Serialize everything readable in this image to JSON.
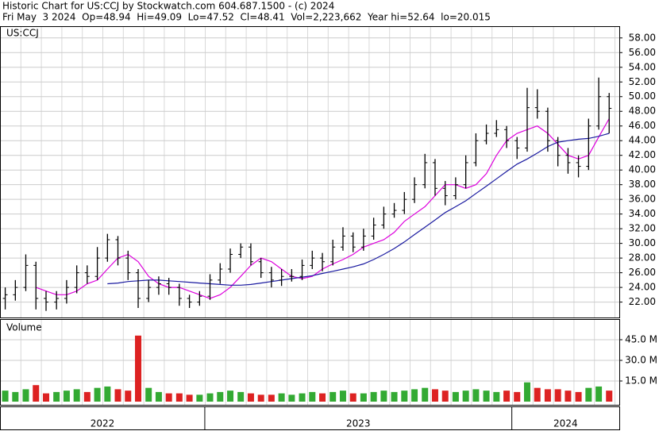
{
  "chart_data": {
    "type": "ohlc",
    "title": "Historic Chart for US:CCJ by Stockwatch.com 604.687.1500 - (c) 2024",
    "subtitle": "Fri May  3 2024  Op=48.94  Hi=49.09  Lo=47.52  Cl=48.41  Vol=2,223,662  Year hi=52.64  lo=20.015",
    "symbol_label": "US:CCJ",
    "volume_label": "Volume",
    "up_color": "#33aa33",
    "down_color": "#dd2222",
    "bar_color": "#000000",
    "xlim": [
      2022.333,
      2024.35
    ],
    "year_boundaries": [
      2023,
      2024
    ],
    "year_labels": [
      "2022",
      "2023",
      "2024"
    ],
    "ylim": [
      19.9,
      59.6
    ],
    "yticks": [
      {
        "value": 22,
        "label": "22.00"
      },
      {
        "value": 24,
        "label": "24.00"
      },
      {
        "value": 26,
        "label": "26.00"
      },
      {
        "value": 28,
        "label": "28.00"
      },
      {
        "value": 30,
        "label": "30.00"
      },
      {
        "value": 32,
        "label": "32.00"
      },
      {
        "value": 34,
        "label": "34.00"
      },
      {
        "value": 36,
        "label": "36.00"
      },
      {
        "value": 38,
        "label": "38.00"
      },
      {
        "value": 40,
        "label": "40.00"
      },
      {
        "value": 42,
        "label": "42.00"
      },
      {
        "value": 44,
        "label": "44.00"
      },
      {
        "value": 46,
        "label": "46.00"
      },
      {
        "value": 48,
        "label": "48.00"
      },
      {
        "value": 50,
        "label": "50.00"
      },
      {
        "value": 52,
        "label": "52.00"
      },
      {
        "value": 54,
        "label": "54.00"
      },
      {
        "value": 56,
        "label": "56.00"
      },
      {
        "value": 58,
        "label": "58.00"
      }
    ],
    "volume_ylim": [
      0,
      60
    ],
    "volume_yticks": [
      {
        "value": 15,
        "label": "15.0 M"
      },
      {
        "value": 30,
        "label": "30.0 M"
      },
      {
        "value": 45,
        "label": "45.0 M"
      }
    ],
    "grid": true,
    "x": [
      2022.35,
      2022.383,
      2022.417,
      2022.45,
      2022.483,
      2022.517,
      2022.55,
      2022.583,
      2022.617,
      2022.65,
      2022.683,
      2022.717,
      2022.75,
      2022.783,
      2022.817,
      2022.85,
      2022.883,
      2022.917,
      2022.95,
      2022.983,
      2023.017,
      2023.05,
      2023.083,
      2023.117,
      2023.15,
      2023.183,
      2023.217,
      2023.25,
      2023.283,
      2023.317,
      2023.35,
      2023.383,
      2023.417,
      2023.45,
      2023.483,
      2023.517,
      2023.55,
      2023.583,
      2023.617,
      2023.65,
      2023.683,
      2023.717,
      2023.75,
      2023.783,
      2023.817,
      2023.85,
      2023.883,
      2023.917,
      2023.95,
      2023.983,
      2024.017,
      2024.05,
      2024.083,
      2024.117,
      2024.15,
      2024.183,
      2024.217,
      2024.25,
      2024.283,
      2024.317
    ],
    "open": [
      22.5,
      23,
      24,
      27,
      22.5,
      22,
      22.5,
      24,
      26,
      25.5,
      28,
      30.5,
      28,
      26,
      22.5,
      24,
      24.5,
      24,
      22.5,
      22,
      22.8,
      25,
      26.5,
      28.5,
      29.5,
      27.5,
      26,
      25,
      25.5,
      25.5,
      27,
      28,
      27.5,
      29.5,
      31,
      29.5,
      31,
      32.5,
      34,
      34.5,
      36,
      38,
      41,
      37.5,
      36.5,
      38,
      41,
      44,
      45,
      45.5,
      44,
      43,
      48.5,
      48,
      44,
      42,
      41,
      40.5,
      46,
      50
    ],
    "high": [
      24,
      25,
      28.5,
      27.5,
      23.5,
      23.5,
      25,
      27,
      27,
      29.5,
      31.3,
      31,
      29,
      26.5,
      25,
      25.5,
      25.3,
      24.5,
      23,
      23.5,
      25.8,
      27.3,
      29.3,
      30,
      30,
      28,
      26.8,
      26.5,
      26.5,
      27.8,
      29,
      28.7,
      30.5,
      32.2,
      31.5,
      32,
      33.5,
      35,
      35.5,
      37,
      39,
      42.2,
      41.5,
      38.5,
      39,
      42,
      45,
      46.2,
      46.8,
      46,
      44.5,
      51.2,
      51,
      48.5,
      44.5,
      43,
      42,
      47,
      52.6,
      50.5
    ],
    "low": [
      21,
      22.2,
      23.5,
      21,
      20.8,
      21,
      21.8,
      23.2,
      24.5,
      25,
      27.5,
      27,
      25,
      21.2,
      22,
      23,
      23,
      21.5,
      21.2,
      21.5,
      22.3,
      24.5,
      26,
      28,
      27,
      25.3,
      24,
      24.2,
      24.8,
      25,
      26.5,
      26.2,
      27,
      29,
      28.8,
      29,
      30.5,
      32,
      33.5,
      34,
      35.5,
      37.5,
      36.5,
      35.2,
      36,
      37.5,
      40.5,
      43.5,
      44.5,
      43,
      41.5,
      42.5,
      47,
      42.5,
      40.5,
      39.5,
      39,
      40,
      45.5,
      45
    ],
    "close": [
      23,
      24,
      27,
      22.5,
      22,
      22.5,
      24,
      26,
      25.5,
      28,
      30.5,
      28,
      26,
      22.5,
      24,
      24.5,
      24,
      22.5,
      22,
      22.8,
      25,
      26.5,
      28.5,
      29.5,
      27.5,
      26,
      25,
      25.5,
      25.5,
      27,
      28,
      27.5,
      29.5,
      31,
      29.5,
      31,
      32.5,
      34,
      34.5,
      36,
      38,
      41,
      37.5,
      36.5,
      38,
      41,
      44,
      45,
      45.5,
      44,
      43,
      48.5,
      48,
      44,
      42,
      41,
      40.5,
      46,
      50,
      48.4
    ],
    "volume": [
      8,
      7,
      9,
      12,
      6,
      7,
      8,
      9,
      7,
      10,
      11,
      9,
      8,
      48,
      10,
      7,
      6,
      6,
      5,
      5,
      6,
      7,
      8,
      7,
      6,
      5,
      5,
      6,
      5,
      6,
      7,
      6,
      7,
      8,
      6,
      6,
      7,
      8,
      7,
      8,
      9,
      10,
      9,
      8,
      7,
      8,
      9,
      8,
      7,
      8,
      7,
      14,
      10,
      9,
      9,
      8,
      7,
      10,
      11,
      8
    ],
    "moving_averages": [
      {
        "color": "#dd00dd",
        "values": [
          null,
          null,
          null,
          24,
          23.5,
          23,
          23,
          23.5,
          24.5,
          25,
          26.5,
          28,
          28.5,
          27.5,
          25.5,
          24.5,
          24,
          24,
          23.5,
          23,
          22.5,
          23,
          24,
          25.5,
          27,
          28,
          27.5,
          26.5,
          25.5,
          25.2,
          25.5,
          26.5,
          27.2,
          27.8,
          28.5,
          29.5,
          30,
          30.5,
          31.5,
          33,
          34,
          35,
          36.5,
          38,
          38,
          37.5,
          38,
          39.5,
          42,
          44,
          45,
          45.5,
          46,
          45,
          43.5,
          42,
          41.5,
          42,
          44.5,
          47
        ]
      },
      {
        "color": "#1a1aa0",
        "values": [
          null,
          null,
          null,
          null,
          null,
          null,
          null,
          null,
          null,
          null,
          24.5,
          24.6,
          24.8,
          24.9,
          25,
          25,
          24.9,
          24.8,
          24.7,
          24.6,
          24.5,
          24.4,
          24.3,
          24.3,
          24.4,
          24.6,
          24.8,
          25,
          25.2,
          25.4,
          25.6,
          25.9,
          26.2,
          26.5,
          26.8,
          27.2,
          27.8,
          28.5,
          29.3,
          30.2,
          31.2,
          32.2,
          33.2,
          34.2,
          35,
          35.8,
          36.8,
          37.8,
          38.8,
          39.8,
          40.8,
          41.5,
          42.3,
          43.2,
          43.8,
          44,
          44.2,
          44.3,
          44.6,
          45
        ]
      }
    ]
  }
}
